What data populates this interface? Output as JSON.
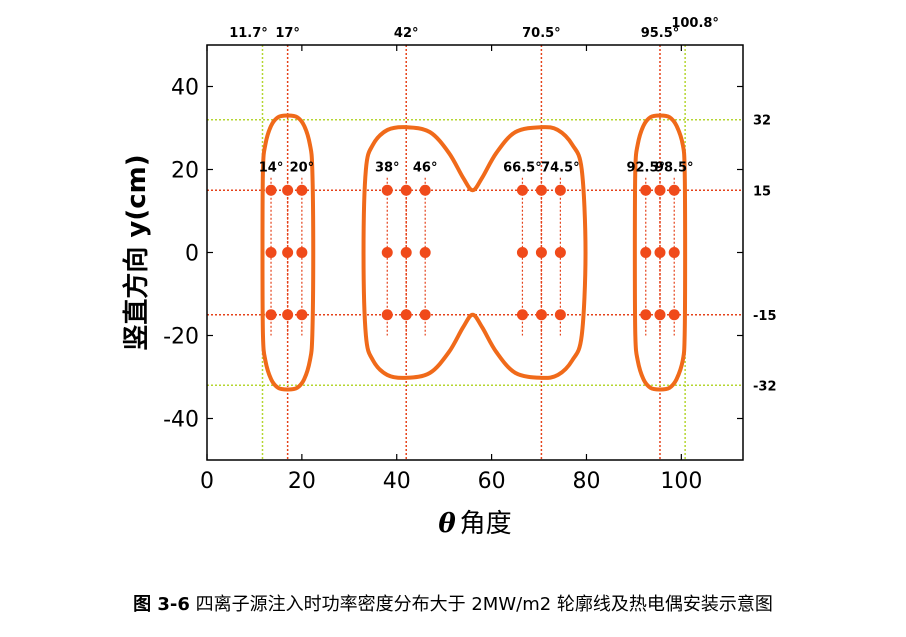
{
  "chart_data": {
    "type": "scatter",
    "xlabel_symbol": "θ",
    "xlabel": "角度",
    "ylabel": "竖直方向 y(cm)",
    "xlim": [
      0,
      113
    ],
    "ylim": [
      -50,
      50
    ],
    "xticks": [
      0,
      20,
      40,
      60,
      80,
      100
    ],
    "yticks": [
      -40,
      -20,
      0,
      20,
      40
    ],
    "vlines": [
      {
        "x": 11.7,
        "label": "11.7°",
        "color": "#b5d630"
      },
      {
        "x": 17,
        "label": "17°",
        "color": "#e5421a"
      },
      {
        "x": 42,
        "label": "42°",
        "color": "#e5421a"
      },
      {
        "x": 70.5,
        "label": "70.5°",
        "color": "#e5421a"
      },
      {
        "x": 95.5,
        "label": "95.5°",
        "color": "#e5421a"
      },
      {
        "x": 100.8,
        "label": "100.8°",
        "color": "#b5d630"
      }
    ],
    "hlines": [
      {
        "y": 32,
        "label": "32",
        "color": "#b5d630"
      },
      {
        "y": 15,
        "label": "15",
        "color": "#e5421a"
      },
      {
        "y": -15,
        "label": "-15",
        "color": "#e5421a"
      },
      {
        "y": -32,
        "label": "-32",
        "color": "#b5d630"
      }
    ],
    "thermocouple_columns": [
      {
        "x": 13.5,
        "label": "14°"
      },
      {
        "x": 17,
        "label": ""
      },
      {
        "x": 20,
        "label": "20°"
      },
      {
        "x": 38,
        "label": "38°"
      },
      {
        "x": 42,
        "label": ""
      },
      {
        "x": 46,
        "label": "46°"
      },
      {
        "x": 66.5,
        "label": "66.5°"
      },
      {
        "x": 70.5,
        "label": ""
      },
      {
        "x": 74.5,
        "label": "74.5°"
      },
      {
        "x": 92.5,
        "label": "92.5°"
      },
      {
        "x": 95.5,
        "label": ""
      },
      {
        "x": 98.5,
        "label": "98.5°"
      }
    ],
    "thermocouple_rows": [
      15,
      0,
      -15
    ],
    "contours": [
      [
        [
          17,
          33
        ],
        [
          19,
          32.6
        ],
        [
          20.5,
          30.5
        ],
        [
          21.7,
          26
        ],
        [
          22.2,
          20
        ],
        [
          22.4,
          0
        ],
        [
          22.2,
          -20
        ],
        [
          21.7,
          -26
        ],
        [
          20.5,
          -30.5
        ],
        [
          19,
          -32.6
        ],
        [
          17,
          -33
        ],
        [
          15,
          -32.6
        ],
        [
          13.5,
          -30.5
        ],
        [
          12.3,
          -26
        ],
        [
          11.8,
          -20
        ],
        [
          11.7,
          0
        ],
        [
          11.8,
          20
        ],
        [
          12.3,
          26
        ],
        [
          13.5,
          30.5
        ],
        [
          15,
          32.6
        ]
      ],
      [
        [
          42,
          30.2
        ],
        [
          47,
          29
        ],
        [
          51,
          24
        ],
        [
          54,
          18
        ],
        [
          56,
          15
        ],
        [
          58,
          18
        ],
        [
          61,
          24
        ],
        [
          65,
          29
        ],
        [
          70.5,
          30.2
        ],
        [
          74,
          29.5
        ],
        [
          77,
          26
        ],
        [
          79,
          20
        ],
        [
          79.8,
          0
        ],
        [
          79,
          -20
        ],
        [
          77,
          -26
        ],
        [
          74,
          -29.5
        ],
        [
          70.5,
          -30.2
        ],
        [
          65,
          -29
        ],
        [
          61,
          -24
        ],
        [
          58,
          -18
        ],
        [
          56,
          -15
        ],
        [
          54,
          -18
        ],
        [
          51,
          -24
        ],
        [
          47,
          -29
        ],
        [
          42,
          -30.2
        ],
        [
          38,
          -29.5
        ],
        [
          35,
          -26
        ],
        [
          33.5,
          -20
        ],
        [
          33,
          0
        ],
        [
          33.5,
          20
        ],
        [
          35,
          26
        ],
        [
          38,
          29.5
        ]
      ],
      [
        [
          95.5,
          33
        ],
        [
          97.5,
          32.6
        ],
        [
          99,
          30.5
        ],
        [
          100.3,
          26
        ],
        [
          100.7,
          20
        ],
        [
          100.8,
          0
        ],
        [
          100.7,
          -20
        ],
        [
          100.3,
          -26
        ],
        [
          99,
          -30.5
        ],
        [
          97.5,
          -32.6
        ],
        [
          95.5,
          -33
        ],
        [
          93.5,
          -32.6
        ],
        [
          92,
          -30.5
        ],
        [
          90.8,
          -26
        ],
        [
          90.3,
          -20
        ],
        [
          90.2,
          0
        ],
        [
          90.3,
          20
        ],
        [
          90.8,
          26
        ],
        [
          92,
          30.5
        ],
        [
          93.5,
          32.6
        ]
      ]
    ],
    "colors": {
      "contour": "#f06a1a",
      "point": "#f04a1a",
      "red_line": "#e5421a",
      "green_line": "#b5d630"
    }
  },
  "caption": {
    "figure": "图 3-6",
    "text": "四离子源注入时功率密度分布大于 2MW/m2 轮廓线及热电偶安装示意图"
  }
}
